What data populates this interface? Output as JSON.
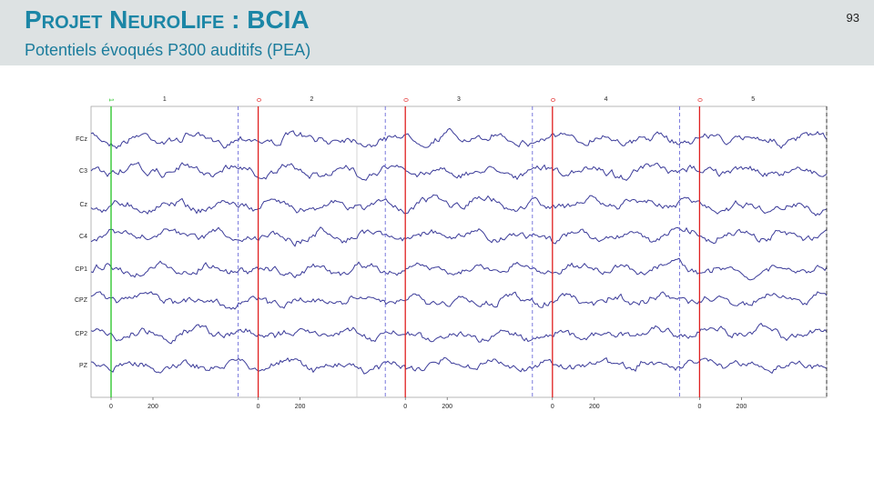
{
  "header": {
    "title": "Projet NeuroLife : BCIA",
    "subtitle": "Potentiels évoqués P300 auditifs (PEA)",
    "page_number": "93"
  },
  "figure": {
    "channels": [
      "FCz",
      "C3",
      "Cz",
      "C4",
      "CP1",
      "CPZ",
      "CP2",
      "PZ"
    ],
    "epochs": [
      {
        "number": "1",
        "marker": "1",
        "tick_labels": [
          "0",
          "200"
        ]
      },
      {
        "number": "2",
        "marker": "0",
        "tick_labels": [
          "0",
          "200"
        ]
      },
      {
        "number": "3",
        "marker": "0",
        "tick_labels": [
          "0",
          "200"
        ]
      },
      {
        "number": "4",
        "marker": "0",
        "tick_labels": [
          "0",
          "200"
        ]
      },
      {
        "number": "5",
        "marker": "0",
        "tick_labels": [
          "0",
          "200"
        ]
      }
    ]
  }
}
